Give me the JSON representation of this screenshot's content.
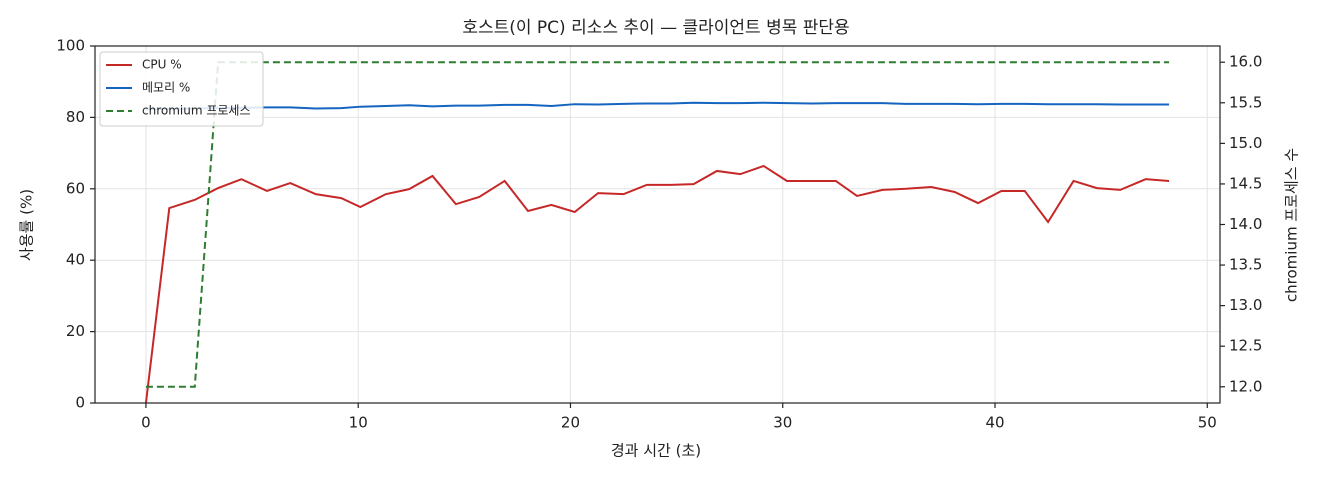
{
  "chart_data": {
    "type": "line",
    "title": "호스트(이 PC) 리소스 추이 — 클라이언트 병목 판단용",
    "x_label": "경과 시간 (초)",
    "y_label": "사용률 (%)",
    "y2_label": "chromium 프로세스 수",
    "x": [
      0,
      1.1,
      2.3,
      3.4,
      4.5,
      5.7,
      6.8,
      8.0,
      9.2,
      10.1,
      11.3,
      12.4,
      13.5,
      14.6,
      15.7,
      16.9,
      18.0,
      19.1,
      20.2,
      21.3,
      22.5,
      23.6,
      24.7,
      25.8,
      26.9,
      28.0,
      29.1,
      30.2,
      31.4,
      32.5,
      33.5,
      34.7,
      35.8,
      37.0,
      38.1,
      39.2,
      40.3,
      41.4,
      42.5,
      43.7,
      44.8,
      45.9,
      47.1,
      48.2
    ],
    "series": [
      {
        "name": "CPU %",
        "color": "#c62828",
        "linestyle": "solid",
        "values": [
          0,
          54.6,
          56.9,
          60.2,
          62.7,
          59.4,
          61.6,
          58.5,
          57.4,
          54.9,
          58.5,
          59.9,
          63.6,
          55.7,
          57.7,
          62.2,
          53.8,
          55.5,
          53.5,
          58.8,
          58.5,
          61.1,
          61.1,
          61.3,
          65.0,
          64.1,
          66.4,
          62.2,
          62.2,
          62.2,
          58.0,
          59.7,
          60.0,
          60.5,
          59.1,
          56.0,
          59.4,
          59.4,
          50.7,
          62.2,
          60.2,
          59.7,
          62.7,
          62.2
        ]
      },
      {
        "name": "메모리 %",
        "color": "#1565c0",
        "linestyle": "solid",
        "values": [
          82.3,
          82.4,
          82.5,
          82.6,
          82.7,
          82.8,
          82.8,
          82.5,
          82.6,
          83.0,
          83.2,
          83.4,
          83.1,
          83.3,
          83.3,
          83.5,
          83.5,
          83.2,
          83.7,
          83.6,
          83.8,
          83.9,
          83.9,
          84.1,
          84.0,
          84.0,
          84.1,
          84.0,
          83.9,
          84.0,
          84.0,
          84.0,
          83.8,
          83.8,
          83.8,
          83.7,
          83.8,
          83.8,
          83.7,
          83.7,
          83.7,
          83.6,
          83.6,
          83.6
        ]
      },
      {
        "name": "chromium 프로세스",
        "color": "#2e7d32",
        "linestyle": "dashed",
        "axis": "y2",
        "values": [
          12,
          12,
          12,
          16,
          16,
          16,
          16,
          16,
          16,
          16,
          16,
          16,
          16,
          16,
          16,
          16,
          16,
          16,
          16,
          16,
          16,
          16,
          16,
          16,
          16,
          16,
          16,
          16,
          16,
          16,
          16,
          16,
          16,
          16,
          16,
          16,
          16,
          16,
          16,
          16,
          16,
          16,
          16,
          16
        ]
      }
    ],
    "xlim": [
      -2.4,
      50.6
    ],
    "xticks": [
      0,
      10,
      20,
      30,
      40,
      50
    ],
    "ylim": [
      0,
      100
    ],
    "yticks": [
      0,
      20,
      40,
      60,
      80,
      100
    ],
    "y2lim": [
      11.8,
      16.2
    ],
    "y2ticks": [
      {
        "value": 12,
        "label": "12.0"
      },
      {
        "value": 12.5,
        "label": "12.5"
      },
      {
        "value": 13,
        "label": "13.0"
      },
      {
        "value": 13.5,
        "label": "13.5"
      },
      {
        "value": 14,
        "label": "14.0"
      },
      {
        "value": 14.5,
        "label": "14.5"
      },
      {
        "value": 15,
        "label": "15.0"
      },
      {
        "value": 15.5,
        "label": "15.5"
      },
      {
        "value": 16,
        "label": "16.0"
      }
    ],
    "grid": true,
    "legend": "upper left"
  }
}
